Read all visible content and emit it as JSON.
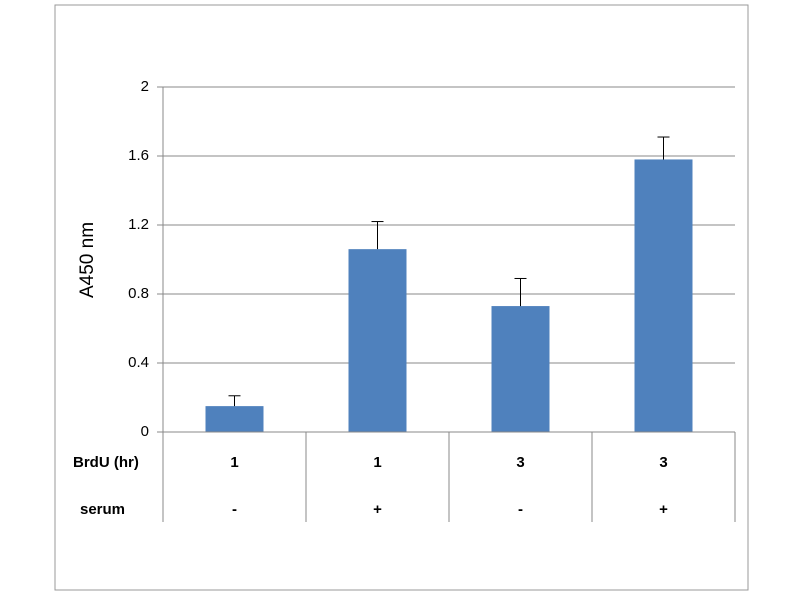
{
  "chart_data": {
    "type": "bar",
    "ylabel": "A450 nm",
    "values": [
      0.15,
      1.06,
      0.73,
      1.58
    ],
    "errors": [
      0.06,
      0.16,
      0.16,
      0.13
    ],
    "category_rows": [
      {
        "name": "BrdU (hr)",
        "labels": [
          "1",
          "1",
          "3",
          "3"
        ]
      },
      {
        "name": "serum",
        "labels": [
          "-",
          "+",
          "-",
          "+"
        ]
      }
    ],
    "color": "#4f81bd",
    "ylim": [
      0,
      2
    ],
    "yticks": [
      0,
      0.4,
      0.8,
      1.2,
      1.6,
      2
    ],
    "grid": true
  }
}
